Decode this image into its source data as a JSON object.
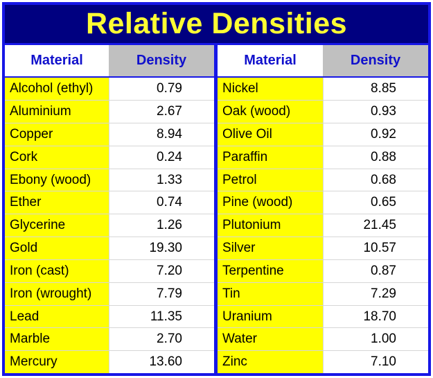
{
  "title": "Relative Densities",
  "colors": {
    "frame": "#1717e6",
    "title_bg": "#000080",
    "title_text": "#ffff33",
    "material_bg": "#ffff00",
    "density_header_bg": "#c0c0c0",
    "header_text": "#1010cc"
  },
  "chart_data": {
    "type": "table",
    "title": "Relative Densities",
    "columns": [
      "Material",
      "Density"
    ],
    "tables": [
      {
        "headers": [
          "Material",
          "Density"
        ],
        "rows": [
          [
            "Alcohol (ethyl)",
            "0.79"
          ],
          [
            "Aluminium",
            "2.67"
          ],
          [
            "Copper",
            "8.94"
          ],
          [
            "Cork",
            "0.24"
          ],
          [
            "Ebony (wood)",
            "1.33"
          ],
          [
            "Ether",
            "0.74"
          ],
          [
            "Glycerine",
            "1.26"
          ],
          [
            "Gold",
            "19.30"
          ],
          [
            "Iron (cast)",
            "7.20"
          ],
          [
            "Iron (wrought)",
            "7.79"
          ],
          [
            "Lead",
            "11.35"
          ],
          [
            "Marble",
            "2.70"
          ],
          [
            "Mercury",
            "13.60"
          ]
        ]
      },
      {
        "headers": [
          "Material",
          "Density"
        ],
        "rows": [
          [
            "Nickel",
            "8.85"
          ],
          [
            "Oak (wood)",
            "0.93"
          ],
          [
            "Olive Oil",
            "0.92"
          ],
          [
            "Paraffin",
            "0.88"
          ],
          [
            "Petrol",
            "0.68"
          ],
          [
            "Pine (wood)",
            "0.65"
          ],
          [
            "Plutonium",
            "21.45"
          ],
          [
            "Silver",
            "10.57"
          ],
          [
            "Terpentine",
            "0.87"
          ],
          [
            "Tin",
            "7.29"
          ],
          [
            "Uranium",
            "18.70"
          ],
          [
            "Water",
            "1.00"
          ],
          [
            "Zinc",
            "7.10"
          ]
        ]
      }
    ]
  }
}
